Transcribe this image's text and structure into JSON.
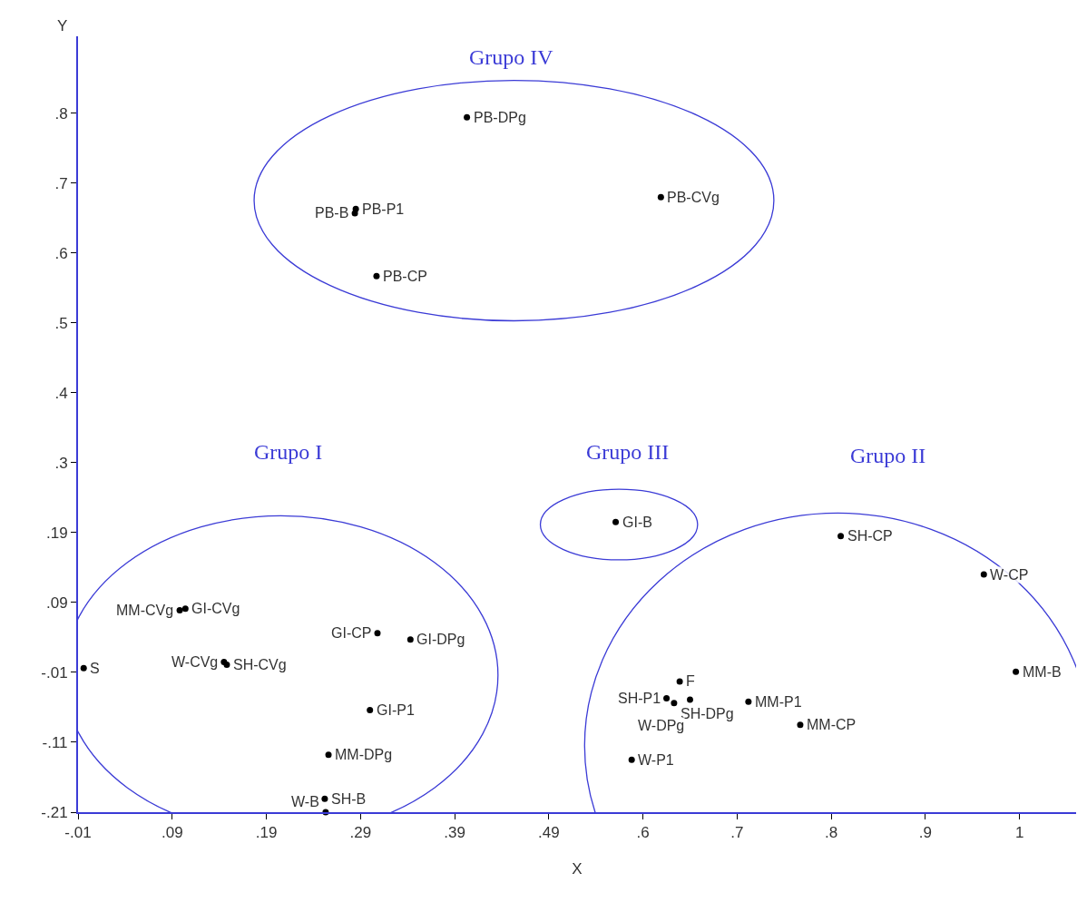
{
  "chart_data": {
    "type": "scatter",
    "xlabel": "X",
    "ylabel": "Y",
    "xlim": [
      -0.01,
      1.05
    ],
    "ylim": [
      -0.21,
      0.9
    ],
    "xticks": [
      {
        "value": -0.01,
        "label": "-.01"
      },
      {
        "value": 0.09,
        "label": ".09"
      },
      {
        "value": 0.19,
        "label": ".19"
      },
      {
        "value": 0.29,
        "label": ".29"
      },
      {
        "value": 0.39,
        "label": ".39"
      },
      {
        "value": 0.49,
        "label": ".49"
      },
      {
        "value": 0.59,
        "label": ".6"
      },
      {
        "value": 0.69,
        "label": ".7"
      },
      {
        "value": 0.79,
        "label": ".8"
      },
      {
        "value": 0.89,
        "label": ".9"
      },
      {
        "value": 0.99,
        "label": "1"
      }
    ],
    "yticks": [
      {
        "value": -0.21,
        "label": "-.21"
      },
      {
        "value": -0.11,
        "label": "-.11"
      },
      {
        "value": -0.01,
        "label": "-.01"
      },
      {
        "value": 0.09,
        "label": ".09"
      },
      {
        "value": 0.19,
        "label": ".19"
      },
      {
        "value": 0.29,
        "label": ".3"
      },
      {
        "value": 0.39,
        "label": ".4"
      },
      {
        "value": 0.49,
        "label": ".5"
      },
      {
        "value": 0.59,
        "label": ".6"
      },
      {
        "value": 0.69,
        "label": ".7"
      },
      {
        "value": 0.79,
        "label": ".8"
      }
    ],
    "grid": false,
    "legend": false,
    "marker": "circle",
    "series": [
      {
        "name": "PB-DPg",
        "color": "#000000",
        "x": [
          0.403
        ],
        "values": [
          0.784
        ]
      },
      {
        "name": "PB-P1",
        "color": "#000000",
        "x": [
          0.285
        ],
        "values": [
          0.653
        ]
      },
      {
        "name": "PB-B",
        "color": "#000000",
        "x": [
          0.284
        ],
        "values": [
          0.647
        ]
      },
      {
        "name": "PB-CP",
        "color": "#000000",
        "x": [
          0.307
        ],
        "values": [
          0.557
        ]
      },
      {
        "name": "PB-CVg",
        "color": "#000000",
        "x": [
          0.609
        ],
        "values": [
          0.67
        ]
      },
      {
        "name": "GI-B",
        "color": "#000000",
        "x": [
          0.561
        ],
        "values": [
          0.205
        ]
      },
      {
        "name": "SH-CP",
        "color": "#000000",
        "x": [
          0.8
        ],
        "values": [
          0.185
        ]
      },
      {
        "name": "W-CP",
        "color": "#000000",
        "x": [
          0.952
        ],
        "values": [
          0.13
        ]
      },
      {
        "name": "MM-B",
        "color": "#000000",
        "x": [
          0.986
        ],
        "values": [
          -0.009
        ]
      },
      {
        "name": "F",
        "color": "#000000",
        "x": [
          0.629
        ],
        "values": [
          -0.023
        ]
      },
      {
        "name": "SH-P1",
        "color": "#000000",
        "x": [
          0.615
        ],
        "values": [
          -0.047
        ]
      },
      {
        "name": "SH-DPg",
        "color": "#000000",
        "x": [
          0.623
        ],
        "values": [
          -0.054
        ]
      },
      {
        "name": "W-DPg",
        "color": "#000000",
        "x": [
          0.64
        ],
        "values": [
          -0.049
        ]
      },
      {
        "name": "MM-P1",
        "color": "#000000",
        "x": [
          0.702
        ],
        "values": [
          -0.052
        ]
      },
      {
        "name": "MM-CP",
        "color": "#000000",
        "x": [
          0.757
        ],
        "values": [
          -0.085
        ]
      },
      {
        "name": "W-P1",
        "color": "#000000",
        "x": [
          0.578
        ],
        "values": [
          -0.135
        ]
      },
      {
        "name": "MM-CVg",
        "color": "#000000",
        "x": [
          0.098
        ],
        "values": [
          0.079
        ]
      },
      {
        "name": "GI-CVg",
        "color": "#000000",
        "x": [
          0.104
        ],
        "values": [
          0.081
        ]
      },
      {
        "name": "W-CVg",
        "color": "#000000",
        "x": [
          0.145
        ],
        "values": [
          0.005
        ]
      },
      {
        "name": "SH-CVg",
        "color": "#000000",
        "x": [
          0.148
        ],
        "values": [
          0.001
        ]
      },
      {
        "name": "GI-CP",
        "color": "#000000",
        "x": [
          0.308
        ],
        "values": [
          0.046
        ]
      },
      {
        "name": "GI-DPg",
        "color": "#000000",
        "x": [
          0.343
        ],
        "values": [
          0.037
        ]
      },
      {
        "name": "GI-P1",
        "color": "#000000",
        "x": [
          0.3
        ],
        "values": [
          -0.064
        ]
      },
      {
        "name": "MM-DPg",
        "color": "#000000",
        "x": [
          0.256
        ],
        "values": [
          -0.128
        ]
      },
      {
        "name": "SH-B",
        "color": "#000000",
        "x": [
          0.252
        ],
        "values": [
          -0.191
        ]
      },
      {
        "name": "W-B",
        "color": "#000000",
        "x": [
          0.253
        ],
        "values": [
          -0.21
        ]
      },
      {
        "name": "S",
        "color": "#000000",
        "x": [
          -0.004
        ],
        "values": [
          -0.004
        ]
      }
    ],
    "annotations": [
      "Grupo IV",
      "Grupo I",
      "Grupo III",
      "Grupo II"
    ]
  }
}
